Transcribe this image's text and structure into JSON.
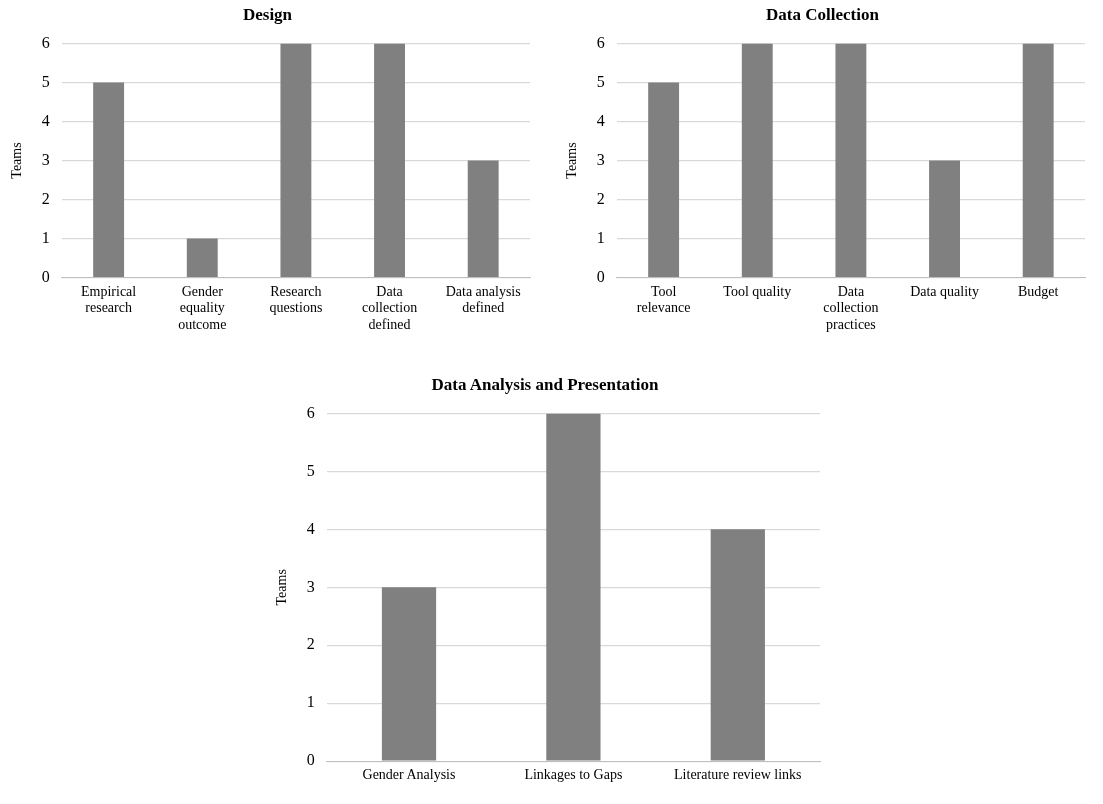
{
  "chart_data": [
    {
      "type": "bar",
      "title": "Design",
      "ylabel": "Teams",
      "categories": [
        "Empirical research",
        "Gender equality outcome",
        "Research questions",
        "Data collection defined",
        "Data analysis defined"
      ],
      "values": [
        5,
        1,
        6,
        6,
        3
      ],
      "color": "#808080",
      "ylim": [
        0,
        6
      ],
      "yticks": [
        0,
        1,
        2,
        3,
        4,
        5,
        6
      ],
      "grid": "y",
      "legend": false
    },
    {
      "type": "bar",
      "title": "Data Collection",
      "ylabel": "Teams",
      "categories": [
        "Tool relevance",
        "Tool quality",
        "Data collection practices",
        "Data quality",
        "Budget"
      ],
      "values": [
        5,
        6,
        6,
        3,
        6
      ],
      "color": "#808080",
      "ylim": [
        0,
        6
      ],
      "yticks": [
        0,
        1,
        2,
        3,
        4,
        5,
        6
      ],
      "grid": "y",
      "legend": false
    },
    {
      "type": "bar",
      "title": "Data Analysis and Presentation",
      "ylabel": "Teams",
      "categories": [
        "Gender Analysis",
        "Linkages to Gaps",
        "Literature review links"
      ],
      "values": [
        3,
        6,
        4
      ],
      "color": "#808080",
      "ylim": [
        0,
        6
      ],
      "yticks": [
        0,
        1,
        2,
        3,
        4,
        5,
        6
      ],
      "grid": "y",
      "legend": false
    }
  ]
}
